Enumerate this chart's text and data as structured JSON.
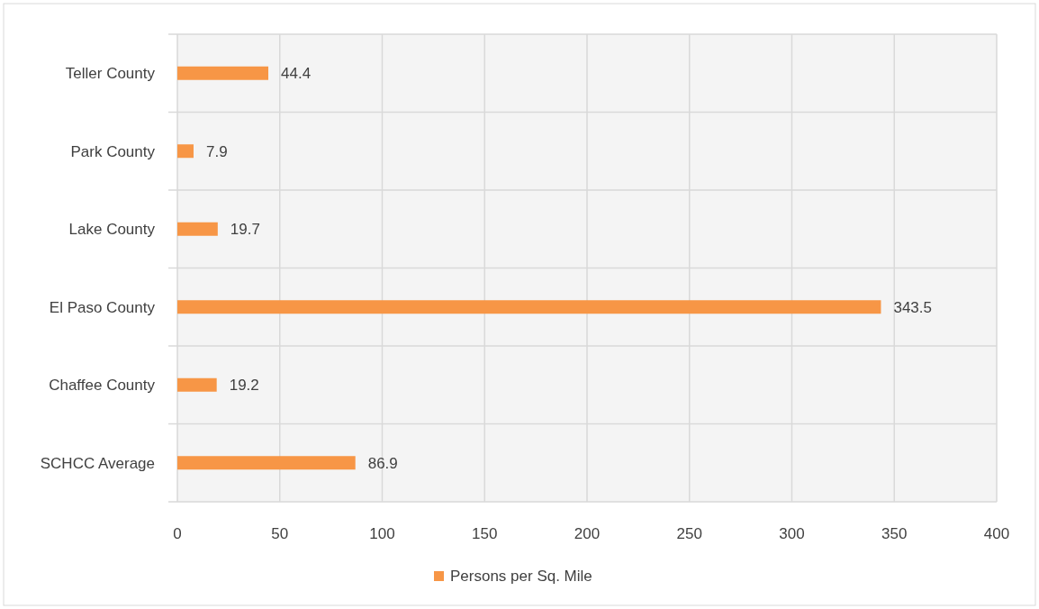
{
  "chart_data": {
    "type": "bar",
    "orientation": "horizontal",
    "categories": [
      "Teller County",
      "Park County",
      "Lake County",
      "El Paso County",
      "Chaffee County",
      "SCHCC Average"
    ],
    "series": [
      {
        "name": "Persons per Sq. Mile",
        "color": "#f79646",
        "values": [
          44.4,
          7.9,
          19.7,
          343.5,
          19.2,
          86.9
        ]
      }
    ],
    "xlim": [
      0,
      400
    ],
    "xticks": [
      0,
      50,
      100,
      150,
      200,
      250,
      300,
      350,
      400
    ],
    "grid": true,
    "legend": "bottom",
    "data_labels": true
  }
}
